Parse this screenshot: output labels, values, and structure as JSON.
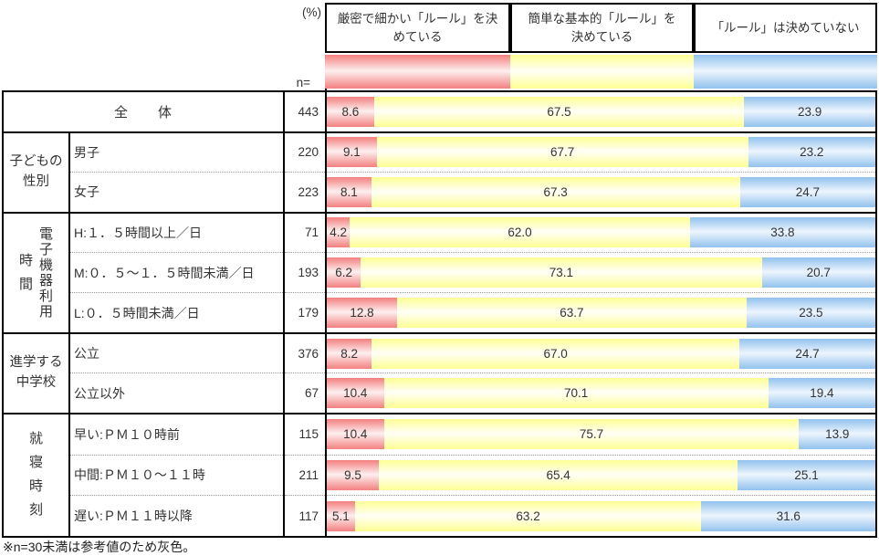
{
  "header": {
    "percent_label": "(%)",
    "n_label": "n=",
    "legend": [
      {
        "label": "厳密で細かい「ルール」を決めている",
        "lines": [
          "厳密で細かい「ルール」を決",
          "めている"
        ]
      },
      {
        "label": "簡単な基本的「ルール」を決めている",
        "lines": [
          "簡単な基本的「ルール」を",
          "決めている"
        ]
      },
      {
        "label": "「ルール」は決めていない",
        "lines": [
          "「ルール」は決めていない"
        ]
      }
    ]
  },
  "chart_colors": [
    {
      "edge": "#F48080",
      "mid": "#FDEFEF"
    },
    {
      "edge": "#FFFF94",
      "mid": "#FFFFF8"
    },
    {
      "edge": "#92C2EE",
      "mid": "#EDF5FD"
    }
  ],
  "table": {
    "groups": [
      {
        "type": "total",
        "rows": [
          {
            "label": "全　　体",
            "n": 443,
            "values": [
              8.6,
              67.5,
              23.9
            ]
          }
        ]
      },
      {
        "type": "h2",
        "label_lines": [
          "子どもの",
          "性別"
        ],
        "rows": [
          {
            "label": "男子",
            "n": 220,
            "values": [
              9.1,
              67.7,
              23.2
            ]
          },
          {
            "label": "女子",
            "n": 223,
            "values": [
              8.1,
              67.3,
              24.7
            ]
          }
        ]
      },
      {
        "type": "v2",
        "label_lines": [
          "電子機器利用",
          "時間"
        ],
        "rows": [
          {
            "label": "H:１．５時間以上／日",
            "n": 71,
            "values": [
              4.2,
              62.0,
              33.8
            ]
          },
          {
            "label": "M:０．５～１．５時間未満／日",
            "n": 193,
            "values": [
              6.2,
              73.1,
              20.7
            ]
          },
          {
            "label": "L:０．５時間未満／日",
            "n": 179,
            "values": [
              12.8,
              63.7,
              23.5
            ]
          }
        ]
      },
      {
        "type": "h2",
        "label_lines": [
          "進学する",
          "中学校"
        ],
        "rows": [
          {
            "label": "公立",
            "n": 376,
            "values": [
              8.2,
              67.0,
              24.7
            ]
          },
          {
            "label": "公立以外",
            "n": 67,
            "values": [
              10.4,
              70.1,
              19.4
            ]
          }
        ]
      },
      {
        "type": "v1",
        "label_lines": [
          "就寝時刻"
        ],
        "rows": [
          {
            "label": "早い:ＰＭ１０時前",
            "n": 115,
            "values": [
              10.4,
              75.7,
              13.9
            ]
          },
          {
            "label": "中間:ＰＭ１０～１１時",
            "n": 211,
            "values": [
              9.5,
              65.4,
              25.1
            ]
          },
          {
            "label": "遅い:ＰＭ１１時以降",
            "n": 117,
            "values": [
              5.1,
              63.2,
              31.6
            ]
          }
        ]
      }
    ]
  },
  "footer": {
    "note": "※n=30未満は参考値のため灰色。"
  },
  "chart_data": {
    "type": "bar",
    "stacked": true,
    "orientation": "horizontal",
    "unit": "%",
    "xlim": [
      0,
      100
    ],
    "categories": [
      "全体",
      "男子",
      "女子",
      "H:1.5時間以上/日",
      "M:0.5～1.5時間未満/日",
      "L:0.5時間未満/日",
      "公立",
      "公立以外",
      "早い:PM10時前",
      "中間:PM10～11時",
      "遅い:PM11時以降"
    ],
    "group_labels": [
      "全体",
      "子どもの性別",
      "電子機器利用時間",
      "進学する中学校",
      "就寝時刻"
    ],
    "n_values": [
      443,
      220,
      223,
      71,
      193,
      179,
      376,
      67,
      115,
      211,
      117
    ],
    "series": [
      {
        "name": "厳密で細かい「ルール」を決めている",
        "color": "#F48080",
        "values": [
          8.6,
          9.1,
          8.1,
          4.2,
          6.2,
          12.8,
          8.2,
          10.4,
          10.4,
          9.5,
          5.1
        ]
      },
      {
        "name": "簡単な基本的「ルール」を決めている",
        "color": "#FFFF94",
        "values": [
          67.5,
          67.7,
          67.3,
          62.0,
          73.1,
          63.7,
          67.0,
          70.1,
          75.7,
          65.4,
          63.2
        ]
      },
      {
        "name": "「ルール」は決めていない",
        "color": "#92C2EE",
        "values": [
          23.9,
          23.2,
          24.7,
          33.8,
          20.7,
          23.5,
          24.7,
          19.4,
          13.9,
          25.1,
          31.6
        ]
      }
    ],
    "footnote": "※n=30未満は参考値のため灰色。",
    "legend_position": "top",
    "grid": false
  }
}
